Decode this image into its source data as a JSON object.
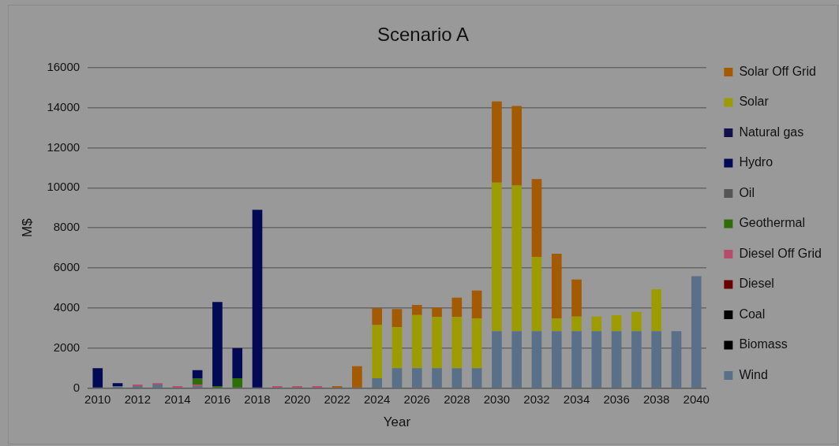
{
  "chart_data": {
    "type": "bar",
    "stacked": true,
    "title": "Scenario A",
    "xlabel": "Year",
    "ylabel": "M$",
    "categories": [
      "2010",
      null,
      "2012",
      null,
      "2014",
      null,
      "2016",
      null,
      "2018",
      null,
      "2020",
      null,
      "2022",
      null,
      "2024",
      null,
      "2026",
      null,
      "2028",
      null,
      "2030",
      null,
      "2032",
      null,
      "2034",
      null,
      "2036",
      null,
      "2038",
      null,
      "2040"
    ],
    "series": [
      {
        "name": "Wind",
        "color": "#5a7088",
        "values": [
          0,
          100,
          100,
          180,
          0,
          100,
          0,
          0,
          0,
          0,
          0,
          0,
          0,
          0,
          500,
          1000,
          1000,
          1000,
          1000,
          1000,
          2850,
          2850,
          2850,
          2850,
          2850,
          2850,
          2850,
          2850,
          2850,
          2850,
          5590
        ]
      },
      {
        "name": "Biomass",
        "color": "#000000",
        "values": [
          0,
          0,
          0,
          0,
          0,
          0,
          0,
          0,
          0,
          0,
          0,
          0,
          0,
          0,
          0,
          0,
          0,
          0,
          0,
          0,
          0,
          0,
          0,
          0,
          0,
          0,
          0,
          0,
          0,
          0,
          0
        ]
      },
      {
        "name": "Coal",
        "color": "#050505",
        "values": [
          0,
          0,
          0,
          0,
          0,
          0,
          0,
          0,
          0,
          0,
          0,
          0,
          0,
          0,
          0,
          0,
          0,
          0,
          0,
          0,
          0,
          0,
          0,
          0,
          0,
          0,
          0,
          0,
          0,
          0,
          0
        ]
      },
      {
        "name": "Diesel",
        "color": "#6a0000",
        "values": [
          0,
          0,
          0,
          0,
          0,
          0,
          0,
          0,
          0,
          0,
          0,
          0,
          0,
          0,
          0,
          0,
          0,
          0,
          0,
          0,
          0,
          0,
          0,
          0,
          0,
          0,
          0,
          0,
          0,
          0,
          0
        ]
      },
      {
        "name": "Diesel Off Grid",
        "color": "#b84a6a",
        "values": [
          0,
          0,
          80,
          70,
          100,
          70,
          0,
          0,
          0,
          100,
          100,
          100,
          0,
          0,
          0,
          0,
          0,
          0,
          0,
          0,
          0,
          0,
          0,
          0,
          0,
          0,
          0,
          0,
          0,
          0,
          0
        ]
      },
      {
        "name": "Geothermal",
        "color": "#2d6e08",
        "values": [
          0,
          0,
          0,
          0,
          0,
          310,
          100,
          500,
          0,
          0,
          0,
          0,
          0,
          0,
          0,
          0,
          0,
          0,
          0,
          0,
          0,
          0,
          0,
          0,
          0,
          0,
          0,
          0,
          0,
          0,
          0
        ]
      },
      {
        "name": "Oil",
        "color": "#555555",
        "values": [
          0,
          0,
          0,
          0,
          0,
          0,
          0,
          0,
          0,
          0,
          0,
          0,
          0,
          0,
          0,
          0,
          0,
          0,
          0,
          0,
          0,
          0,
          0,
          0,
          0,
          0,
          0,
          0,
          0,
          0,
          0
        ]
      },
      {
        "name": "Hydro",
        "color": "#020a55",
        "values": [
          1000,
          150,
          0,
          0,
          0,
          420,
          4200,
          1500,
          8900,
          0,
          0,
          0,
          0,
          0,
          0,
          0,
          0,
          0,
          0,
          0,
          0,
          0,
          0,
          0,
          0,
          0,
          0,
          0,
          0,
          0,
          0
        ]
      },
      {
        "name": "Natural gas",
        "color": "#14104a",
        "values": [
          0,
          0,
          0,
          0,
          0,
          0,
          0,
          0,
          0,
          0,
          0,
          0,
          0,
          0,
          0,
          0,
          0,
          0,
          0,
          0,
          0,
          0,
          0,
          0,
          0,
          0,
          0,
          0,
          0,
          0,
          0
        ]
      },
      {
        "name": "Solar",
        "color": "#9c9c00",
        "values": [
          0,
          0,
          0,
          0,
          0,
          0,
          0,
          0,
          0,
          0,
          0,
          0,
          0,
          0,
          2650,
          2050,
          2650,
          2550,
          2550,
          2480,
          7410,
          7260,
          3700,
          630,
          720,
          720,
          790,
          960,
          2090,
          0,
          0
        ]
      },
      {
        "name": "Solar Off Grid",
        "color": "#a35a00",
        "values": [
          0,
          0,
          0,
          0,
          0,
          0,
          0,
          0,
          0,
          0,
          0,
          0,
          100,
          1100,
          850,
          900,
          500,
          480,
          970,
          1390,
          4050,
          3970,
          3890,
          3230,
          1850,
          0,
          0,
          0,
          0,
          0,
          0
        ]
      }
    ],
    "ylim": [
      0,
      16000
    ],
    "yticks": [
      0,
      2000,
      4000,
      6000,
      8000,
      10000,
      12000,
      14000,
      16000
    ],
    "grid": "y",
    "legend": "right"
  }
}
